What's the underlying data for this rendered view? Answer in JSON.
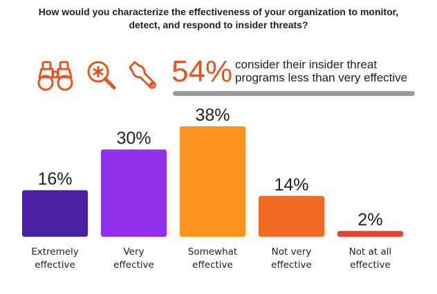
{
  "question": {
    "line1": "How would you characterize the effectiveness of your organization to monitor,",
    "line2": "detect, and respond to insider threats?"
  },
  "highlight": {
    "percent": "54%",
    "text_line1": "consider their insider threat",
    "text_line2": "programs less than very effective",
    "icons": [
      "binoculars-icon",
      "magnifier-icon",
      "wrench-icon"
    ],
    "color": "#e8531f"
  },
  "chart_data": {
    "type": "bar",
    "categories": [
      [
        "Extremely",
        "effective"
      ],
      [
        "Very",
        "effective"
      ],
      [
        "Somewhat",
        "effective"
      ],
      [
        "Not very",
        "effective"
      ],
      [
        "Not at all",
        "effective"
      ]
    ],
    "values": [
      16,
      30,
      38,
      14,
      2
    ],
    "value_labels": [
      "16%",
      "30%",
      "38%",
      "14%",
      "2%"
    ],
    "colors": [
      "#4a1fa3",
      "#9330eb",
      "#ff9421",
      "#f46a24",
      "#e2452c"
    ],
    "ylim": [
      0,
      38
    ],
    "grid": false,
    "legend": "none"
  }
}
